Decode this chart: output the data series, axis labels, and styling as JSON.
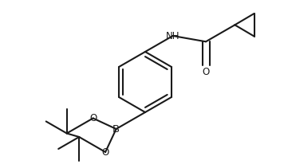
{
  "bg_color": "#ffffff",
  "line_color": "#1a1a1a",
  "line_width": 1.5,
  "font_size_atom": 8.5,
  "figsize": [
    3.56,
    2.11
  ],
  "dpi": 100,
  "xlim": [
    0.0,
    3.56
  ],
  "ylim": [
    0.0,
    2.11
  ]
}
